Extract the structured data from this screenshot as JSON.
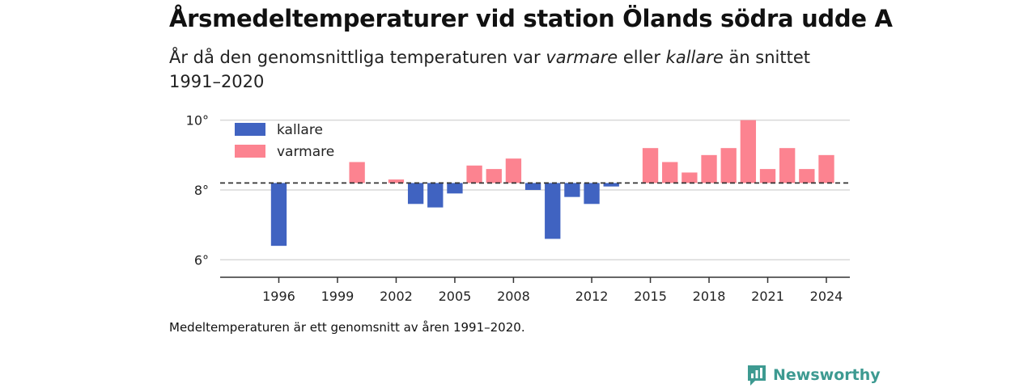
{
  "header": {
    "title": "Årsmedeltemperaturer vid station Ölands södra udde A",
    "subtitle_pre": "År då den genomsnittliga temperaturen var ",
    "subtitle_em1": "varmare",
    "subtitle_mid": " eller ",
    "subtitle_em2": "kallare",
    "subtitle_post": " än snittet 1991–2020"
  },
  "footnote": "Medeltemperaturen är ett genomsnitt av åren 1991–2020.",
  "brand": {
    "name": "Newsworthy",
    "icon": "newsworthy-logo-icon",
    "color": "#3d9a91"
  },
  "colors": {
    "kallare": "#4063c1",
    "varmare": "#fc8390",
    "baseline": "#333333",
    "grid": "#d9d9d9"
  },
  "chart_data": {
    "type": "bar",
    "baseline": 8.2,
    "ylim": [
      5.5,
      10.2
    ],
    "yticks": [
      6,
      8,
      10
    ],
    "ytick_labels": [
      "6°",
      "8°",
      "10°"
    ],
    "xticks": [
      1996,
      1999,
      2002,
      2005,
      2008,
      2012,
      2015,
      2018,
      2021,
      2024
    ],
    "legend": {
      "position": "top-left",
      "items": [
        {
          "key": "kallare",
          "label": "kallare"
        },
        {
          "key": "varmare",
          "label": "varmare"
        }
      ]
    },
    "grid": true,
    "x": [
      1996,
      2000,
      2002,
      2003,
      2004,
      2005,
      2006,
      2007,
      2008,
      2009,
      2010,
      2011,
      2012,
      2013,
      2015,
      2016,
      2017,
      2018,
      2019,
      2020,
      2021,
      2022,
      2023,
      2024
    ],
    "values": [
      6.4,
      8.8,
      8.3,
      7.6,
      7.5,
      7.9,
      8.7,
      8.6,
      8.9,
      8.0,
      6.6,
      7.8,
      7.6,
      8.1,
      9.2,
      8.8,
      8.5,
      9.0,
      9.2,
      10.0,
      8.6,
      9.2,
      8.6,
      9.0
    ]
  }
}
